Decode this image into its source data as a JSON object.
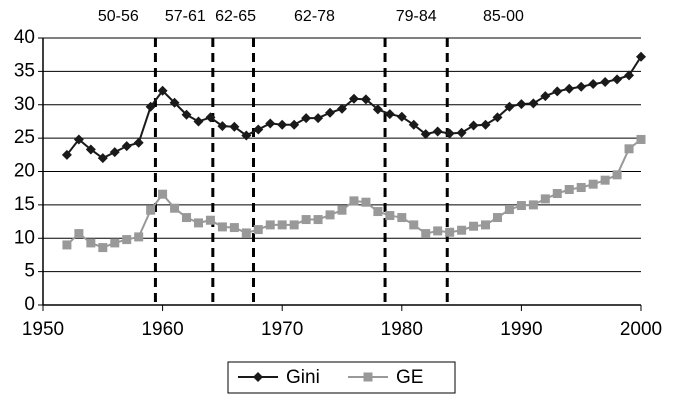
{
  "chart_data": {
    "type": "line",
    "x": [
      1952,
      1953,
      1954,
      1955,
      1956,
      1957,
      1958,
      1959,
      1960,
      1961,
      1962,
      1963,
      1964,
      1965,
      1966,
      1967,
      1968,
      1969,
      1970,
      1971,
      1972,
      1973,
      1974,
      1975,
      1976,
      1977,
      1978,
      1979,
      1980,
      1981,
      1982,
      1983,
      1984,
      1985,
      1986,
      1987,
      1988,
      1989,
      1990,
      1991,
      1992,
      1993,
      1994,
      1995,
      1996,
      1997,
      1998,
      1999,
      2000
    ],
    "series": [
      {
        "name": "Gini",
        "color": "#1a1a1a",
        "marker": "diamond",
        "values": [
          22.5,
          24.8,
          23.3,
          22,
          22.9,
          23.8,
          24.3,
          29.7,
          32.1,
          30.3,
          28.5,
          27.5,
          28.1,
          26.8,
          26.7,
          25.4,
          26.3,
          27.2,
          27,
          27,
          28,
          28,
          28.8,
          29.4,
          30.9,
          30.8,
          29.3,
          28.6,
          28.2,
          27,
          25.6,
          26,
          25.7,
          25.8,
          26.9,
          27,
          28.1,
          29.7,
          30.1,
          30.2,
          31.3,
          32,
          32.4,
          32.7,
          33.1,
          33.4,
          33.8,
          34.4,
          37.2
        ]
      },
      {
        "name": "GE",
        "color": "#999999",
        "marker": "square",
        "values": [
          9,
          10.7,
          9.3,
          8.6,
          9.3,
          9.8,
          10.2,
          14.2,
          16.6,
          14.5,
          13.1,
          12.3,
          12.7,
          11.7,
          11.6,
          10.8,
          11.3,
          12,
          12,
          12,
          12.8,
          12.8,
          13.5,
          14.2,
          15.6,
          15.4,
          14,
          13.4,
          13.1,
          12,
          10.7,
          11.1,
          10.9,
          11.2,
          11.8,
          12,
          13.1,
          14.3,
          14.9,
          15,
          15.9,
          16.7,
          17.3,
          17.6,
          18.1,
          18.7,
          19.5,
          23.4,
          24.8
        ]
      }
    ],
    "xlim": [
      1950,
      2000
    ],
    "xticks": [
      1950,
      1960,
      1970,
      1980,
      1990,
      2000
    ],
    "ylim": [
      0,
      40
    ],
    "yticks": [
      0,
      5,
      10,
      15,
      20,
      25,
      30,
      35,
      40
    ],
    "grid": true,
    "legend": "bottom",
    "vlines": [
      1959.4,
      1964.2,
      1967.6,
      1978.6,
      1983.8
    ],
    "annotations": [
      {
        "text": "50-56",
        "x": 1956.3
      },
      {
        "text": "57-61",
        "x": 1961.9
      },
      {
        "text": "62-65",
        "x": 1966.1
      },
      {
        "text": "62-78",
        "x": 1972.7
      },
      {
        "text": "79-84",
        "x": 1981.2
      },
      {
        "text": "85-00",
        "x": 1988.5
      }
    ]
  }
}
